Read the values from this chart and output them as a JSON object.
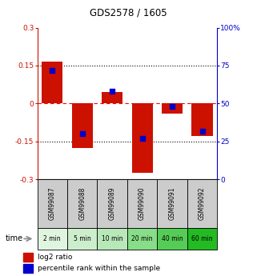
{
  "title": "GDS2578 / 1605",
  "samples": [
    "GSM99087",
    "GSM99088",
    "GSM99089",
    "GSM99090",
    "GSM99091",
    "GSM99092"
  ],
  "time_labels": [
    "2 min",
    "5 min",
    "10 min",
    "20 min",
    "40 min",
    "60 min"
  ],
  "log2_ratio": [
    0.165,
    -0.175,
    0.045,
    -0.275,
    -0.04,
    -0.13
  ],
  "percentile_rank": [
    72,
    30,
    58,
    27,
    48,
    32
  ],
  "ylim_left": [
    -0.3,
    0.3
  ],
  "ylim_right": [
    0,
    100
  ],
  "yticks_left": [
    -0.3,
    -0.15,
    0.0,
    0.15,
    0.3
  ],
  "yticks_right": [
    0,
    25,
    50,
    75,
    100
  ],
  "ytick_labels_left": [
    "-0.3",
    "-0.15",
    "0",
    "0.15",
    "0.3"
  ],
  "ytick_labels_right": [
    "0",
    "25",
    "50",
    "75",
    "100%"
  ],
  "bar_color": "#cc1100",
  "dot_color": "#0000cc",
  "bg_color_plot": "#ffffff",
  "sample_bg_color": "#cccccc",
  "time_bg_colors": [
    "#ccffcc",
    "#ccffcc",
    "#aaddaa",
    "#88cc88",
    "#66bb66",
    "#44aa44"
  ],
  "legend_items": [
    "log2 ratio",
    "percentile rank within the sample"
  ],
  "bar_width": 0.7
}
